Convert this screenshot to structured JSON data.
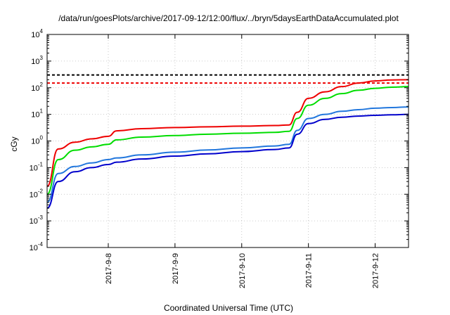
{
  "chart_data": {
    "type": "line",
    "title": "/data/run/goesPlots/archive/2017-09-12/12:00/flux/../bryn/5daysEarthDataAccumulated.plot",
    "xlabel": "Coordinated Universal Time (UTC)",
    "ylabel": "cGy",
    "yscale": "log",
    "ylim": [
      0.0001,
      10000
    ],
    "xlim": [
      "2017-09-07T02:00",
      "2017-09-12T12:00"
    ],
    "x_ticks": [
      "2017-9-8",
      "2017-9-9",
      "2017-9-10",
      "2017-9-11",
      "2017-9-12"
    ],
    "y_ticks": [
      {
        "base": "10",
        "exp": "-4"
      },
      {
        "base": "10",
        "exp": "-3"
      },
      {
        "base": "10",
        "exp": "-2"
      },
      {
        "base": "10",
        "exp": "-1"
      },
      {
        "base": "10",
        "exp": "0"
      },
      {
        "base": "10",
        "exp": "1"
      },
      {
        "base": "10",
        "exp": "2"
      },
      {
        "base": "10",
        "exp": "3"
      },
      {
        "base": "10",
        "exp": "4"
      }
    ],
    "grid": true,
    "x": [
      "2017-09-07T02:00",
      "2017-09-07T06:00",
      "2017-09-07T12:00",
      "2017-09-07T18:00",
      "2017-09-08T00:00",
      "2017-09-08T03:00",
      "2017-09-08T12:00",
      "2017-09-09T00:00",
      "2017-09-09T12:00",
      "2017-09-10T00:00",
      "2017-09-10T12:00",
      "2017-09-10T17:00",
      "2017-09-10T20:00",
      "2017-09-11T00:00",
      "2017-09-11T06:00",
      "2017-09-11T12:00",
      "2017-09-11T18:00",
      "2017-09-12T00:00",
      "2017-09-12T06:00",
      "2017-09-12T12:00"
    ],
    "series": [
      {
        "color": "#ee0000",
        "values": [
          0.02,
          0.5,
          0.9,
          1.2,
          1.5,
          2.4,
          2.9,
          3.2,
          3.4,
          3.6,
          3.8,
          4.0,
          12,
          40,
          70,
          110,
          150,
          180,
          195,
          200
        ]
      },
      {
        "color": "#00dd00",
        "values": [
          0.01,
          0.2,
          0.45,
          0.6,
          0.75,
          1.1,
          1.4,
          1.6,
          1.8,
          1.95,
          2.1,
          2.3,
          7,
          22,
          40,
          60,
          80,
          95,
          105,
          110
        ]
      },
      {
        "color": "#2277dd",
        "values": [
          0.005,
          0.06,
          0.11,
          0.15,
          0.2,
          0.23,
          0.3,
          0.38,
          0.46,
          0.55,
          0.65,
          0.75,
          2.5,
          7,
          10,
          13,
          15,
          17,
          18,
          19
        ]
      },
      {
        "color": "#0000cc",
        "values": [
          0.003,
          0.03,
          0.07,
          0.1,
          0.13,
          0.16,
          0.21,
          0.27,
          0.33,
          0.4,
          0.48,
          0.55,
          1.8,
          4.5,
          6.5,
          7.8,
          8.6,
          9.2,
          9.6,
          10
        ]
      }
    ],
    "reference_lines": [
      {
        "color": "#000000",
        "style": "dashed",
        "value": 300
      },
      {
        "color": "#ee0000",
        "style": "dashed",
        "value": 150
      }
    ]
  }
}
